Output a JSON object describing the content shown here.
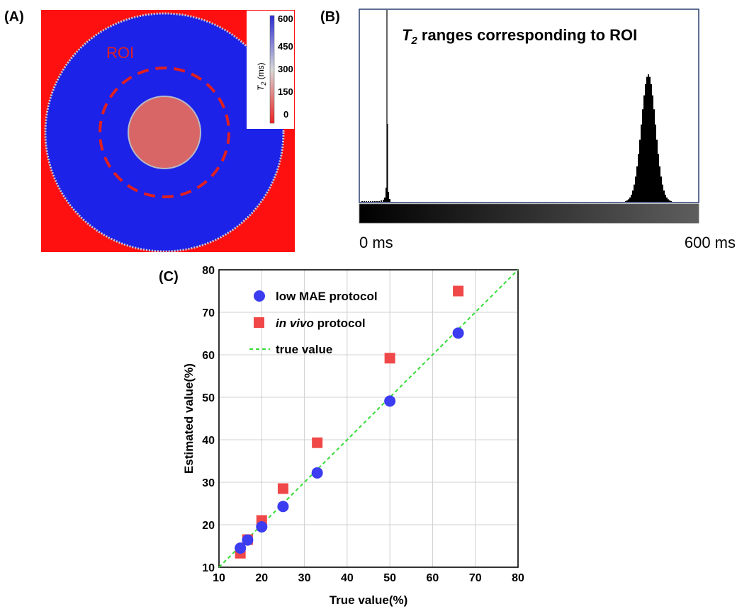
{
  "panels": {
    "a": {
      "label": "(A)",
      "roi_label": "ROI",
      "colorbar": {
        "title": "T",
        "title_sub": "2",
        "title_unit": " (ms)",
        "ticks": [
          "600",
          "450",
          "300",
          "150",
          "0"
        ],
        "colors": {
          "high": "#2b2bd6",
          "mid": "#d9d9d9",
          "low": "#ee2222"
        }
      },
      "colors": {
        "background": "#ff1010",
        "ring": "#1c22e8",
        "center": "#d96666",
        "roi_dash": "#e02020"
      }
    },
    "b": {
      "label": "(B)",
      "title_t": "T",
      "title_sub": "2",
      "title_rest": " ranges corresponding to ROI",
      "scale_min": "0 ms",
      "scale_max": "600 ms"
    },
    "c": {
      "label": "(C)"
    }
  },
  "chart_data": {
    "type": "scatter",
    "xlabel": "True value(%)",
    "ylabel": "Estimated value(%)",
    "xlim": [
      10,
      80
    ],
    "ylim": [
      10,
      80
    ],
    "xticks": [
      "10",
      "20",
      "30",
      "40",
      "50",
      "60",
      "70",
      "80"
    ],
    "yticks": [
      "10",
      "20",
      "30",
      "40",
      "50",
      "60",
      "70",
      "80"
    ],
    "grid": true,
    "legend_position": "top-left",
    "series": [
      {
        "name": "low MAE protocol",
        "marker": "circle",
        "color": "#3c3cf0",
        "x": [
          15,
          16.7,
          20,
          25,
          33,
          50,
          66
        ],
        "y": [
          14.5,
          16.4,
          19.5,
          24.3,
          32.2,
          49.1,
          65.1
        ]
      },
      {
        "name_italic": "in vivo",
        "name_rest": " protocol",
        "marker": "square",
        "color": "#f04848",
        "x": [
          15,
          16.7,
          20,
          25,
          33,
          50,
          66
        ],
        "y": [
          13.3,
          16.5,
          21.0,
          28.5,
          39.3,
          59.2,
          75.0
        ]
      },
      {
        "name": "true value",
        "marker": "dashed-line",
        "color": "#33dd33",
        "x": [
          10,
          80
        ],
        "y": [
          10,
          80
        ]
      }
    ]
  }
}
